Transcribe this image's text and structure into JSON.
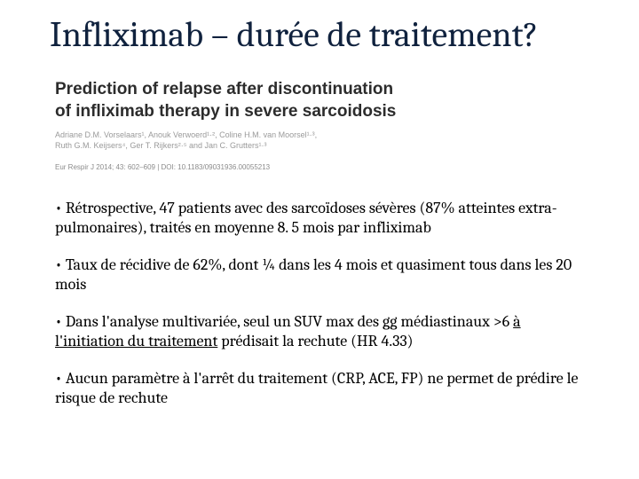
{
  "title": "Infliximab – durée de traitement?",
  "article": {
    "title_line1": "Prediction of relapse after discontinuation",
    "title_line2": "of infliximab therapy in severe sarcoidosis",
    "authors_line1": "Adriane D.M. Vorselaars¹, Anouk Verwoerd¹·², Coline H.M. van Moorsel¹·³,",
    "authors_line2": "Ruth G.M. Keijsers⁴, Ger T. Rijkers²·⁵ and Jan C. Grutters¹·³",
    "citation": "Eur Respir J 2014; 43: 602–609 | DOI: 10.1183/09031936.00055213"
  },
  "bullets": {
    "b1": "• Rétrospective, 47 patients avec des sarcoïdoses sévères (87% atteintes extra-pulmonaires), traités en moyenne 8. 5 mois par infliximab",
    "b2": "• Taux de récidive de 62%, dont ¼ dans les 4 mois et quasiment tous dans les 20 mois",
    "b3_pre": "• Dans l'analyse multivariée, seul un SUV max des gg médiastinaux >6 ",
    "b3_u": "à l'initiation du traitement",
    "b3_post": " prédisait la rechute (HR 4.33)",
    "b4": "• Aucun paramètre à l'arrêt du traitement (CRP, ACE, FP) ne permet de prédire le risque de rechute"
  },
  "colors": {
    "title": "#10223e",
    "article_title": "#2c2c2c",
    "authors": "#9a9a9a",
    "citation": "#8b8b8b",
    "body": "#000000",
    "background": "#ffffff"
  },
  "fontsizes": {
    "title": 40,
    "article_title": 19,
    "authors": 9,
    "citation": 8,
    "bullet": 18
  }
}
